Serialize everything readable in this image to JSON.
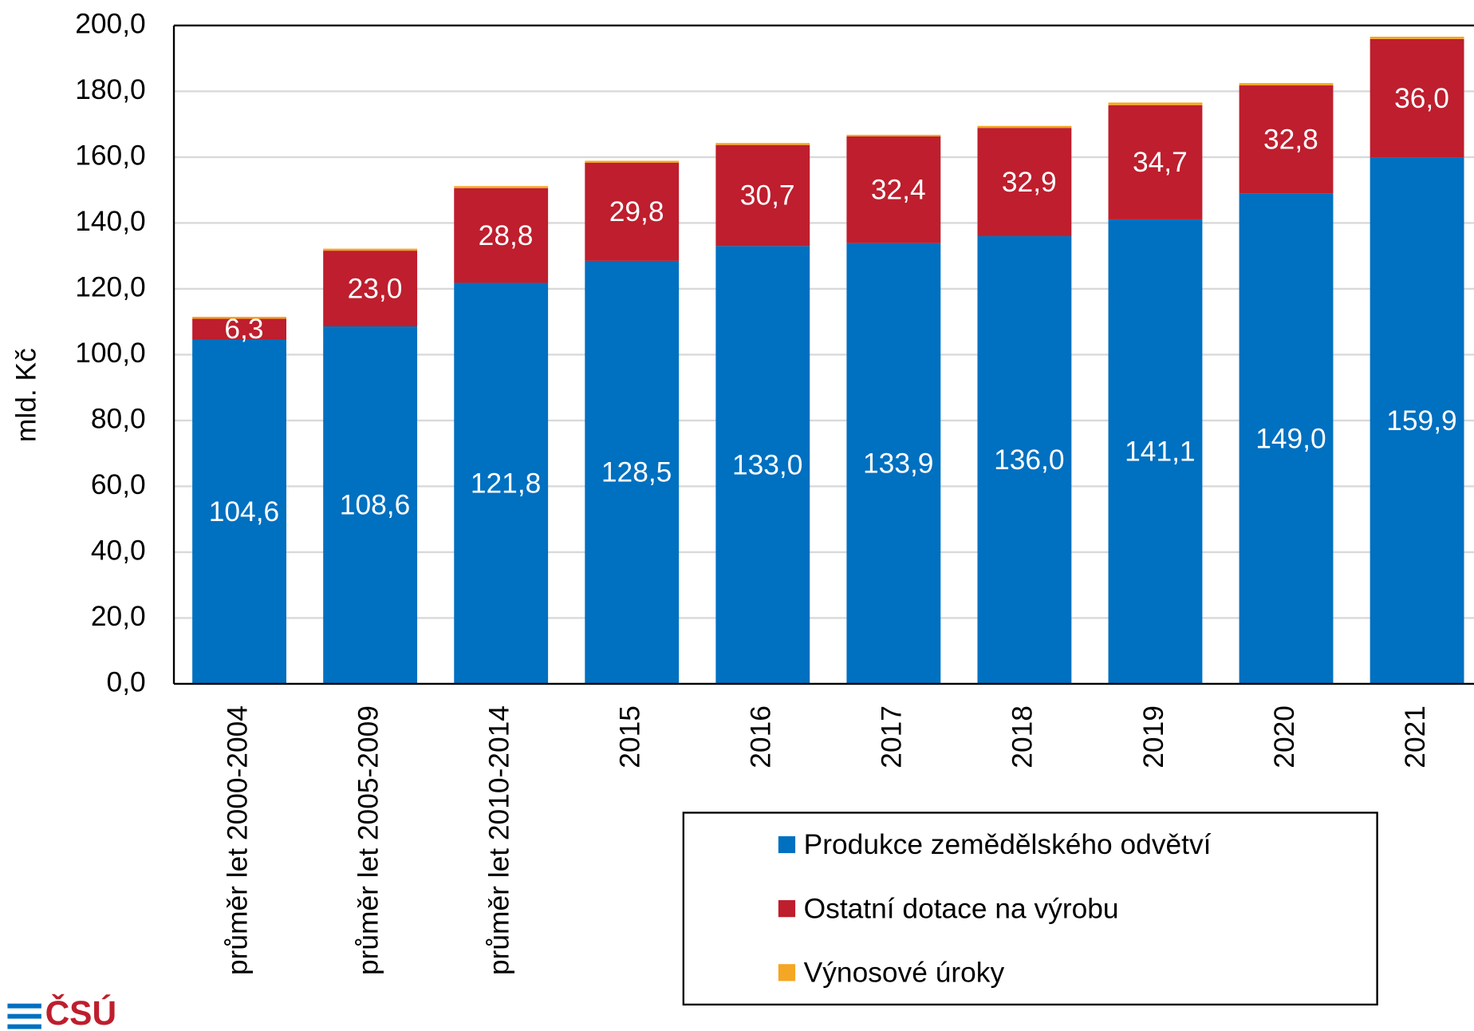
{
  "chart_data": {
    "type": "stacked_bar",
    "y_label": "mld. Kč",
    "categories": [
      "průměr let 2000-2004",
      "průměr let 2005-2009",
      "průměr let 2010-2014",
      "2015",
      "2016",
      "2017",
      "2018",
      "2019",
      "2020",
      "2021"
    ],
    "series": [
      {
        "name": "Produkce zemědělského odvětví",
        "color": "#0070c0",
        "values": [
          104.6,
          108.6,
          121.8,
          128.5,
          133.0,
          133.9,
          136.0,
          141.1,
          149.0,
          159.9
        ],
        "value_labels": [
          "104,6",
          "108,6",
          "121,8",
          "128,5",
          "133,0",
          "133,9",
          "136,0",
          "141,1",
          "149,0",
          "159,9"
        ]
      },
      {
        "name": "Ostatní dotace na výrobu",
        "color": "#be1e2d",
        "values": [
          6.3,
          23.0,
          28.8,
          29.8,
          30.7,
          32.4,
          32.9,
          34.7,
          32.8,
          36.0
        ],
        "value_labels": [
          "6,3",
          "23,0",
          "28,8",
          "29,8",
          "30,7",
          "32,4",
          "32,9",
          "34,7",
          "32,8",
          "36,0"
        ]
      },
      {
        "name": "Výnosové úroky",
        "color": "#f5a623",
        "values": [
          0.6,
          0.6,
          0.6,
          0.6,
          0.6,
          0.5,
          0.6,
          0.8,
          0.7,
          0.7
        ]
      }
    ],
    "ylim": [
      0,
      200
    ],
    "yticks": [
      {
        "value": 0,
        "label": "0,0"
      },
      {
        "value": 20,
        "label": "20,0"
      },
      {
        "value": 40,
        "label": "40,0"
      },
      {
        "value": 60,
        "label": "60,0"
      },
      {
        "value": 80,
        "label": "80,0"
      },
      {
        "value": 100,
        "label": "100,0"
      },
      {
        "value": 120,
        "label": "120,0"
      },
      {
        "value": 140,
        "label": "140,0"
      },
      {
        "value": 160,
        "label": "160,0"
      },
      {
        "value": 180,
        "label": "180,0"
      },
      {
        "value": 200,
        "label": "200,0"
      }
    ],
    "grid": true,
    "legend": "bottom-right"
  },
  "logo": "ČSÚ"
}
